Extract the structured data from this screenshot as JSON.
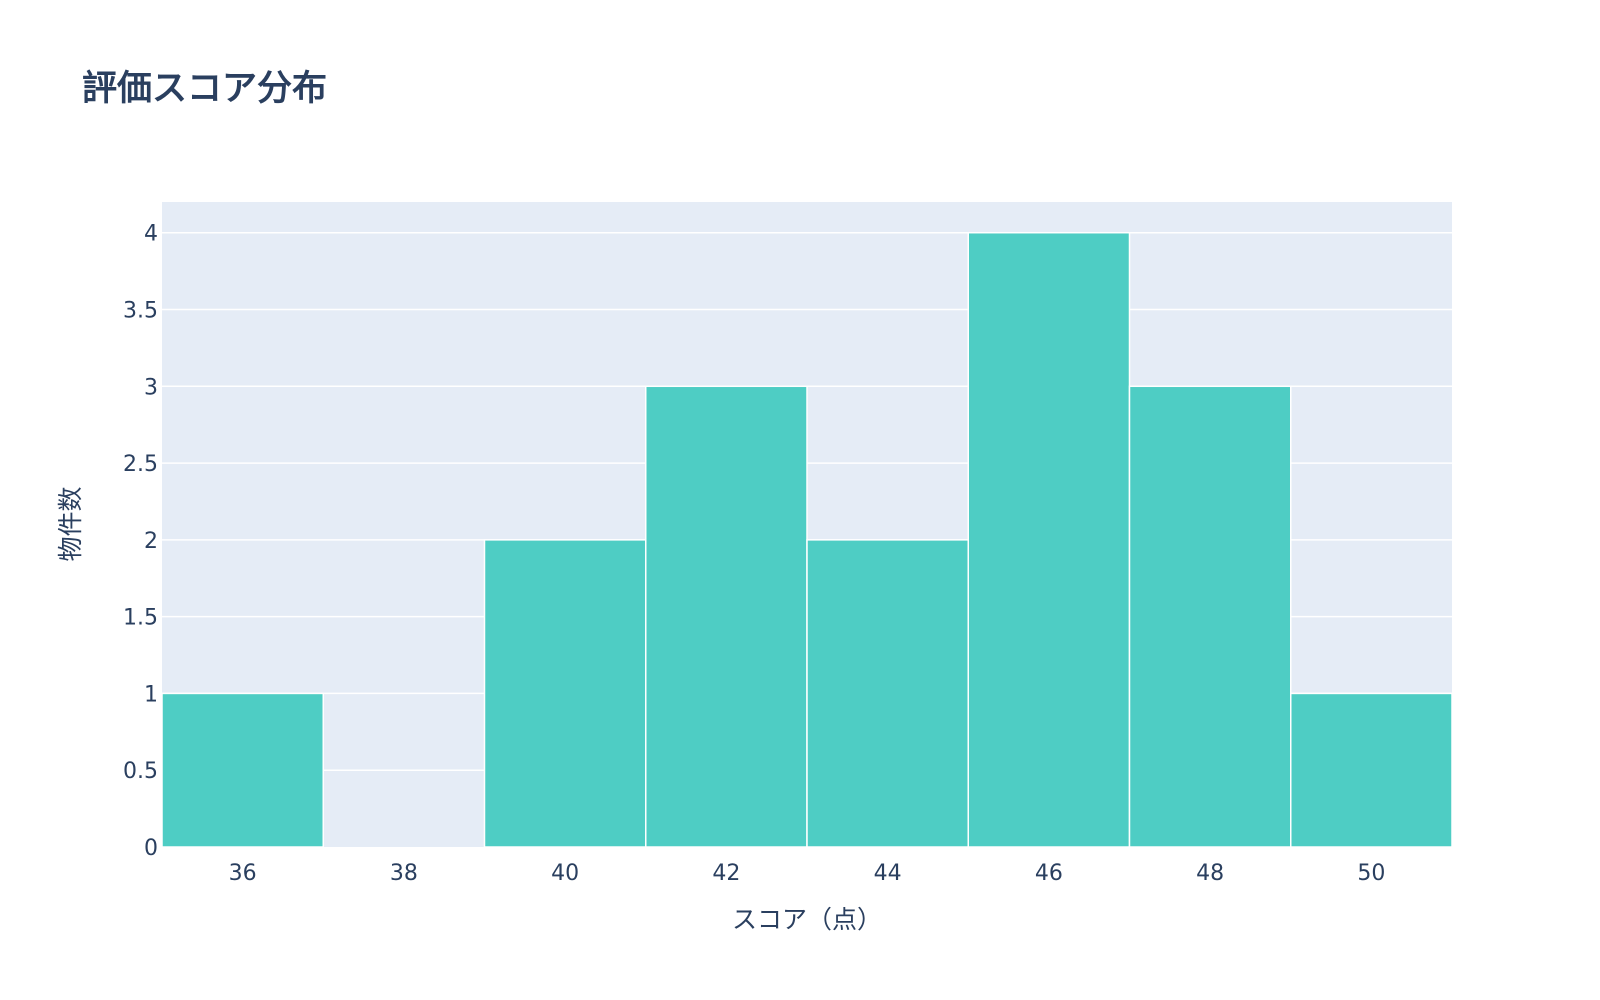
{
  "chart_data": {
    "type": "bar",
    "title": "評価スコア分布",
    "xlabel": "スコア（点）",
    "ylabel": "物件数",
    "bin_width": 2,
    "bins": [
      {
        "start": 35,
        "end": 37,
        "count": 1
      },
      {
        "start": 37,
        "end": 39,
        "count": 0
      },
      {
        "start": 39,
        "end": 41,
        "count": 2
      },
      {
        "start": 41,
        "end": 43,
        "count": 3
      },
      {
        "start": 43,
        "end": 45,
        "count": 2
      },
      {
        "start": 45,
        "end": 47,
        "count": 4
      },
      {
        "start": 47,
        "end": 49,
        "count": 3
      },
      {
        "start": 49,
        "end": 51,
        "count": 1
      }
    ],
    "xlim": [
      35,
      51
    ],
    "ylim": [
      0,
      4.2
    ],
    "x_ticks": [
      "36",
      "38",
      "40",
      "42",
      "44",
      "46",
      "48",
      "50"
    ],
    "y_ticks": [
      "0",
      "0.5",
      "1",
      "1.5",
      "2",
      "2.5",
      "3",
      "3.5",
      "4"
    ],
    "grid": true,
    "bar_color": "#4ecdc4",
    "plot_bg": "#e5ecf6",
    "text_color": "#2a3f5f"
  }
}
